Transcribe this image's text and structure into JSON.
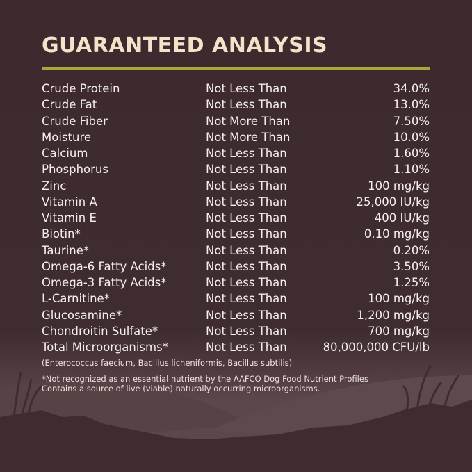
{
  "title": "GUARANTEED ANALYSIS",
  "colors": {
    "background": "#3d2a2e",
    "title": "#f2e4c8",
    "rule": "#a7a83b",
    "text": "#f4efe9"
  },
  "rows": [
    {
      "name": "Crude Protein",
      "relation": "Not Less Than",
      "value": "34.0%"
    },
    {
      "name": "Crude Fat",
      "relation": "Not Less Than",
      "value": "13.0%"
    },
    {
      "name": "Crude Fiber",
      "relation": "Not More Than",
      "value": "7.50%"
    },
    {
      "name": "Moisture",
      "relation": "Not More Than",
      "value": "10.0%"
    },
    {
      "name": "Calcium",
      "relation": "Not Less Than",
      "value": "1.60%"
    },
    {
      "name": "Phosphorus",
      "relation": "Not Less Than",
      "value": "1.10%"
    },
    {
      "name": "Zinc",
      "relation": "Not Less Than",
      "value": "100 mg/kg"
    },
    {
      "name": "Vitamin A",
      "relation": "Not Less Than",
      "value": "25,000 IU/kg"
    },
    {
      "name": "Vitamin E",
      "relation": "Not Less Than",
      "value": "400 IU/kg"
    },
    {
      "name": "Biotin*",
      "relation": "Not Less Than",
      "value": "0.10 mg/kg"
    },
    {
      "name": "Taurine*",
      "relation": "Not Less Than",
      "value": "0.20%"
    },
    {
      "name": "Omega-6 Fatty Acids*",
      "relation": "Not Less Than",
      "value": "3.50%"
    },
    {
      "name": "Omega-3 Fatty Acids*",
      "relation": "Not Less Than",
      "value": "1.25%"
    },
    {
      "name": "L-Carnitine*",
      "relation": "Not Less Than",
      "value": "100 mg/kg"
    },
    {
      "name": "Glucosamine*",
      "relation": "Not Less Than",
      "value": "1,200 mg/kg"
    },
    {
      "name": "Chondroitin Sulfate*",
      "relation": "Not Less Than",
      "value": "700 mg/kg"
    },
    {
      "name": "Total Microorganisms*",
      "relation": "Not Less Than",
      "value": "80,000,000 CFU/lb"
    }
  ],
  "notes": {
    "species": "(Enterococcus faecium, Bacillus licheniformis, Bacillus subtilis)",
    "aafco": "*Not recognized as an essential nutrient by the AAFCO Dog Food Nutrient Profiles",
    "live": "Contains a source of live (viable) naturally occurring microorganisms."
  }
}
